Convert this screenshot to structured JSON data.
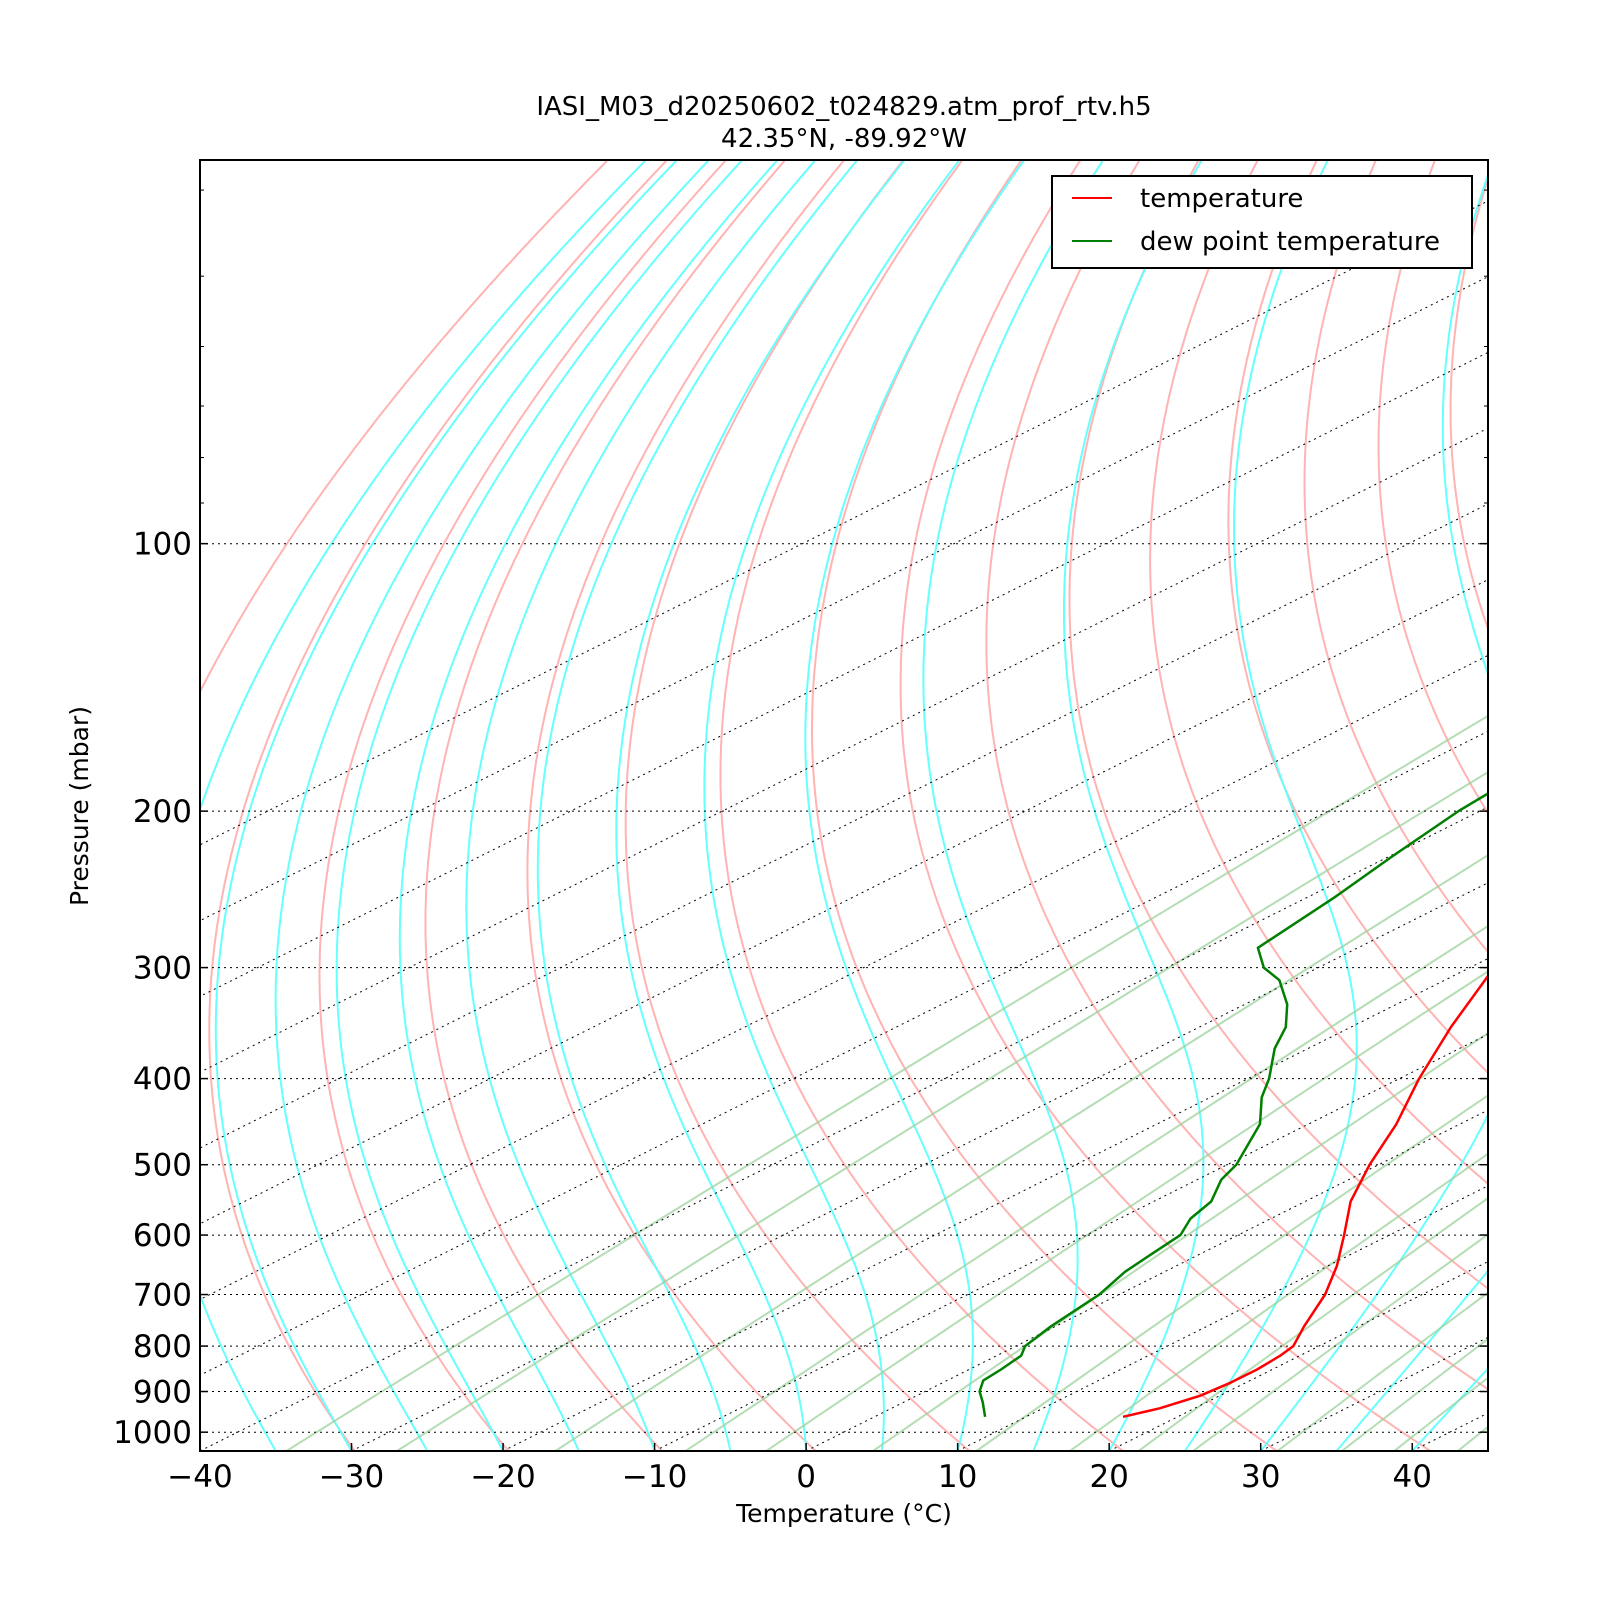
{
  "chart_data": {
    "type": "line",
    "title": "IASI_M03_d20250602_t024829.atm_prof_rtv.h5",
    "subtitle": "42.35°N, -89.92°W",
    "xlabel": "Temperature (°C)",
    "ylabel": "Pressure (mbar)",
    "xlim": [
      -40,
      45
    ],
    "ylim": [
      1050,
      37
    ],
    "y_scale": "log",
    "skew": true,
    "grid": true,
    "legend_position": "top-right",
    "x_ticks": [
      {
        "value": -40,
        "label": "−40"
      },
      {
        "value": -30,
        "label": "−30"
      },
      {
        "value": -20,
        "label": "−20"
      },
      {
        "value": -10,
        "label": "−10"
      },
      {
        "value": 0,
        "label": "0"
      },
      {
        "value": 10,
        "label": "10"
      },
      {
        "value": 20,
        "label": "20"
      },
      {
        "value": 30,
        "label": "30"
      },
      {
        "value": 40,
        "label": "40"
      }
    ],
    "y_ticks": [
      {
        "value": 100,
        "label": "100"
      },
      {
        "value": 200,
        "label": "200"
      },
      {
        "value": 300,
        "label": "300"
      },
      {
        "value": 400,
        "label": "400"
      },
      {
        "value": 500,
        "label": "500"
      },
      {
        "value": 600,
        "label": "600"
      },
      {
        "value": 700,
        "label": "700"
      },
      {
        "value": 800,
        "label": "800"
      },
      {
        "value": 900,
        "label": "900"
      },
      {
        "value": 1000,
        "label": "1000"
      }
    ],
    "series": [
      {
        "name": "temperature",
        "color": "#ff0000",
        "points": [
          [
            961,
            16.4
          ],
          [
            940,
            17.7
          ],
          [
            910,
            18.7
          ],
          [
            880,
            19.0
          ],
          [
            850,
            19.0
          ],
          [
            820,
            18.7
          ],
          [
            800,
            18.3
          ],
          [
            760,
            16.4
          ],
          [
            700,
            13.6
          ],
          [
            650,
            10.6
          ],
          [
            600,
            7.0
          ],
          [
            550,
            3.0
          ],
          [
            500,
            -0.6
          ],
          [
            450,
            -4.2
          ],
          [
            400,
            -8.7
          ],
          [
            350,
            -13.4
          ],
          [
            300,
            -18.4
          ],
          [
            275,
            -21.6
          ],
          [
            250,
            -24.3
          ],
          [
            225,
            -25.8
          ],
          [
            200,
            -26.6
          ],
          [
            190,
            -26.4
          ],
          [
            175,
            -25.2
          ],
          [
            150,
            -22.7
          ],
          [
            125,
            -19.0
          ],
          [
            110,
            -15.8
          ],
          [
            100,
            -14.7
          ],
          [
            90,
            -13.6
          ],
          [
            80,
            -11.8
          ],
          [
            70,
            -9.2
          ],
          [
            65,
            -7.6
          ],
          [
            55,
            -5.1
          ],
          [
            50,
            -2.9
          ]
        ]
      },
      {
        "name": "dew point temperature",
        "color": "#007f00",
        "points": [
          [
            961,
            7.3
          ],
          [
            925,
            5.2
          ],
          [
            900,
            3.6
          ],
          [
            875,
            2.4
          ],
          [
            850,
            2.1
          ],
          [
            820,
            1.6
          ],
          [
            800,
            0.6
          ],
          [
            760,
            -0.3
          ],
          [
            700,
            -1.3
          ],
          [
            660,
            -2.6
          ],
          [
            625,
            -3.3
          ],
          [
            600,
            -3.8
          ],
          [
            575,
            -5.3
          ],
          [
            550,
            -6.2
          ],
          [
            520,
            -8.4
          ],
          [
            500,
            -9.4
          ],
          [
            450,
            -13.2
          ],
          [
            420,
            -16.6
          ],
          [
            400,
            -18.6
          ],
          [
            370,
            -22.2
          ],
          [
            350,
            -24.3
          ],
          [
            330,
            -27.2
          ],
          [
            310,
            -30.9
          ],
          [
            300,
            -33.6
          ],
          [
            285,
            -36.6
          ],
          [
            250,
            -38.2
          ],
          [
            225,
            -39.8
          ],
          [
            200,
            -41.4
          ],
          [
            175,
            -42.5
          ],
          [
            160,
            -43.6
          ],
          [
            150,
            -44.8
          ],
          [
            130,
            -45.3
          ],
          [
            115,
            -45.9
          ],
          [
            100,
            -47.1
          ],
          [
            90,
            -48.4
          ],
          [
            75,
            -50.6
          ],
          [
            60,
            -52.9
          ],
          [
            50,
            -55.5
          ],
          [
            37,
            -59.9
          ]
        ]
      }
    ]
  }
}
